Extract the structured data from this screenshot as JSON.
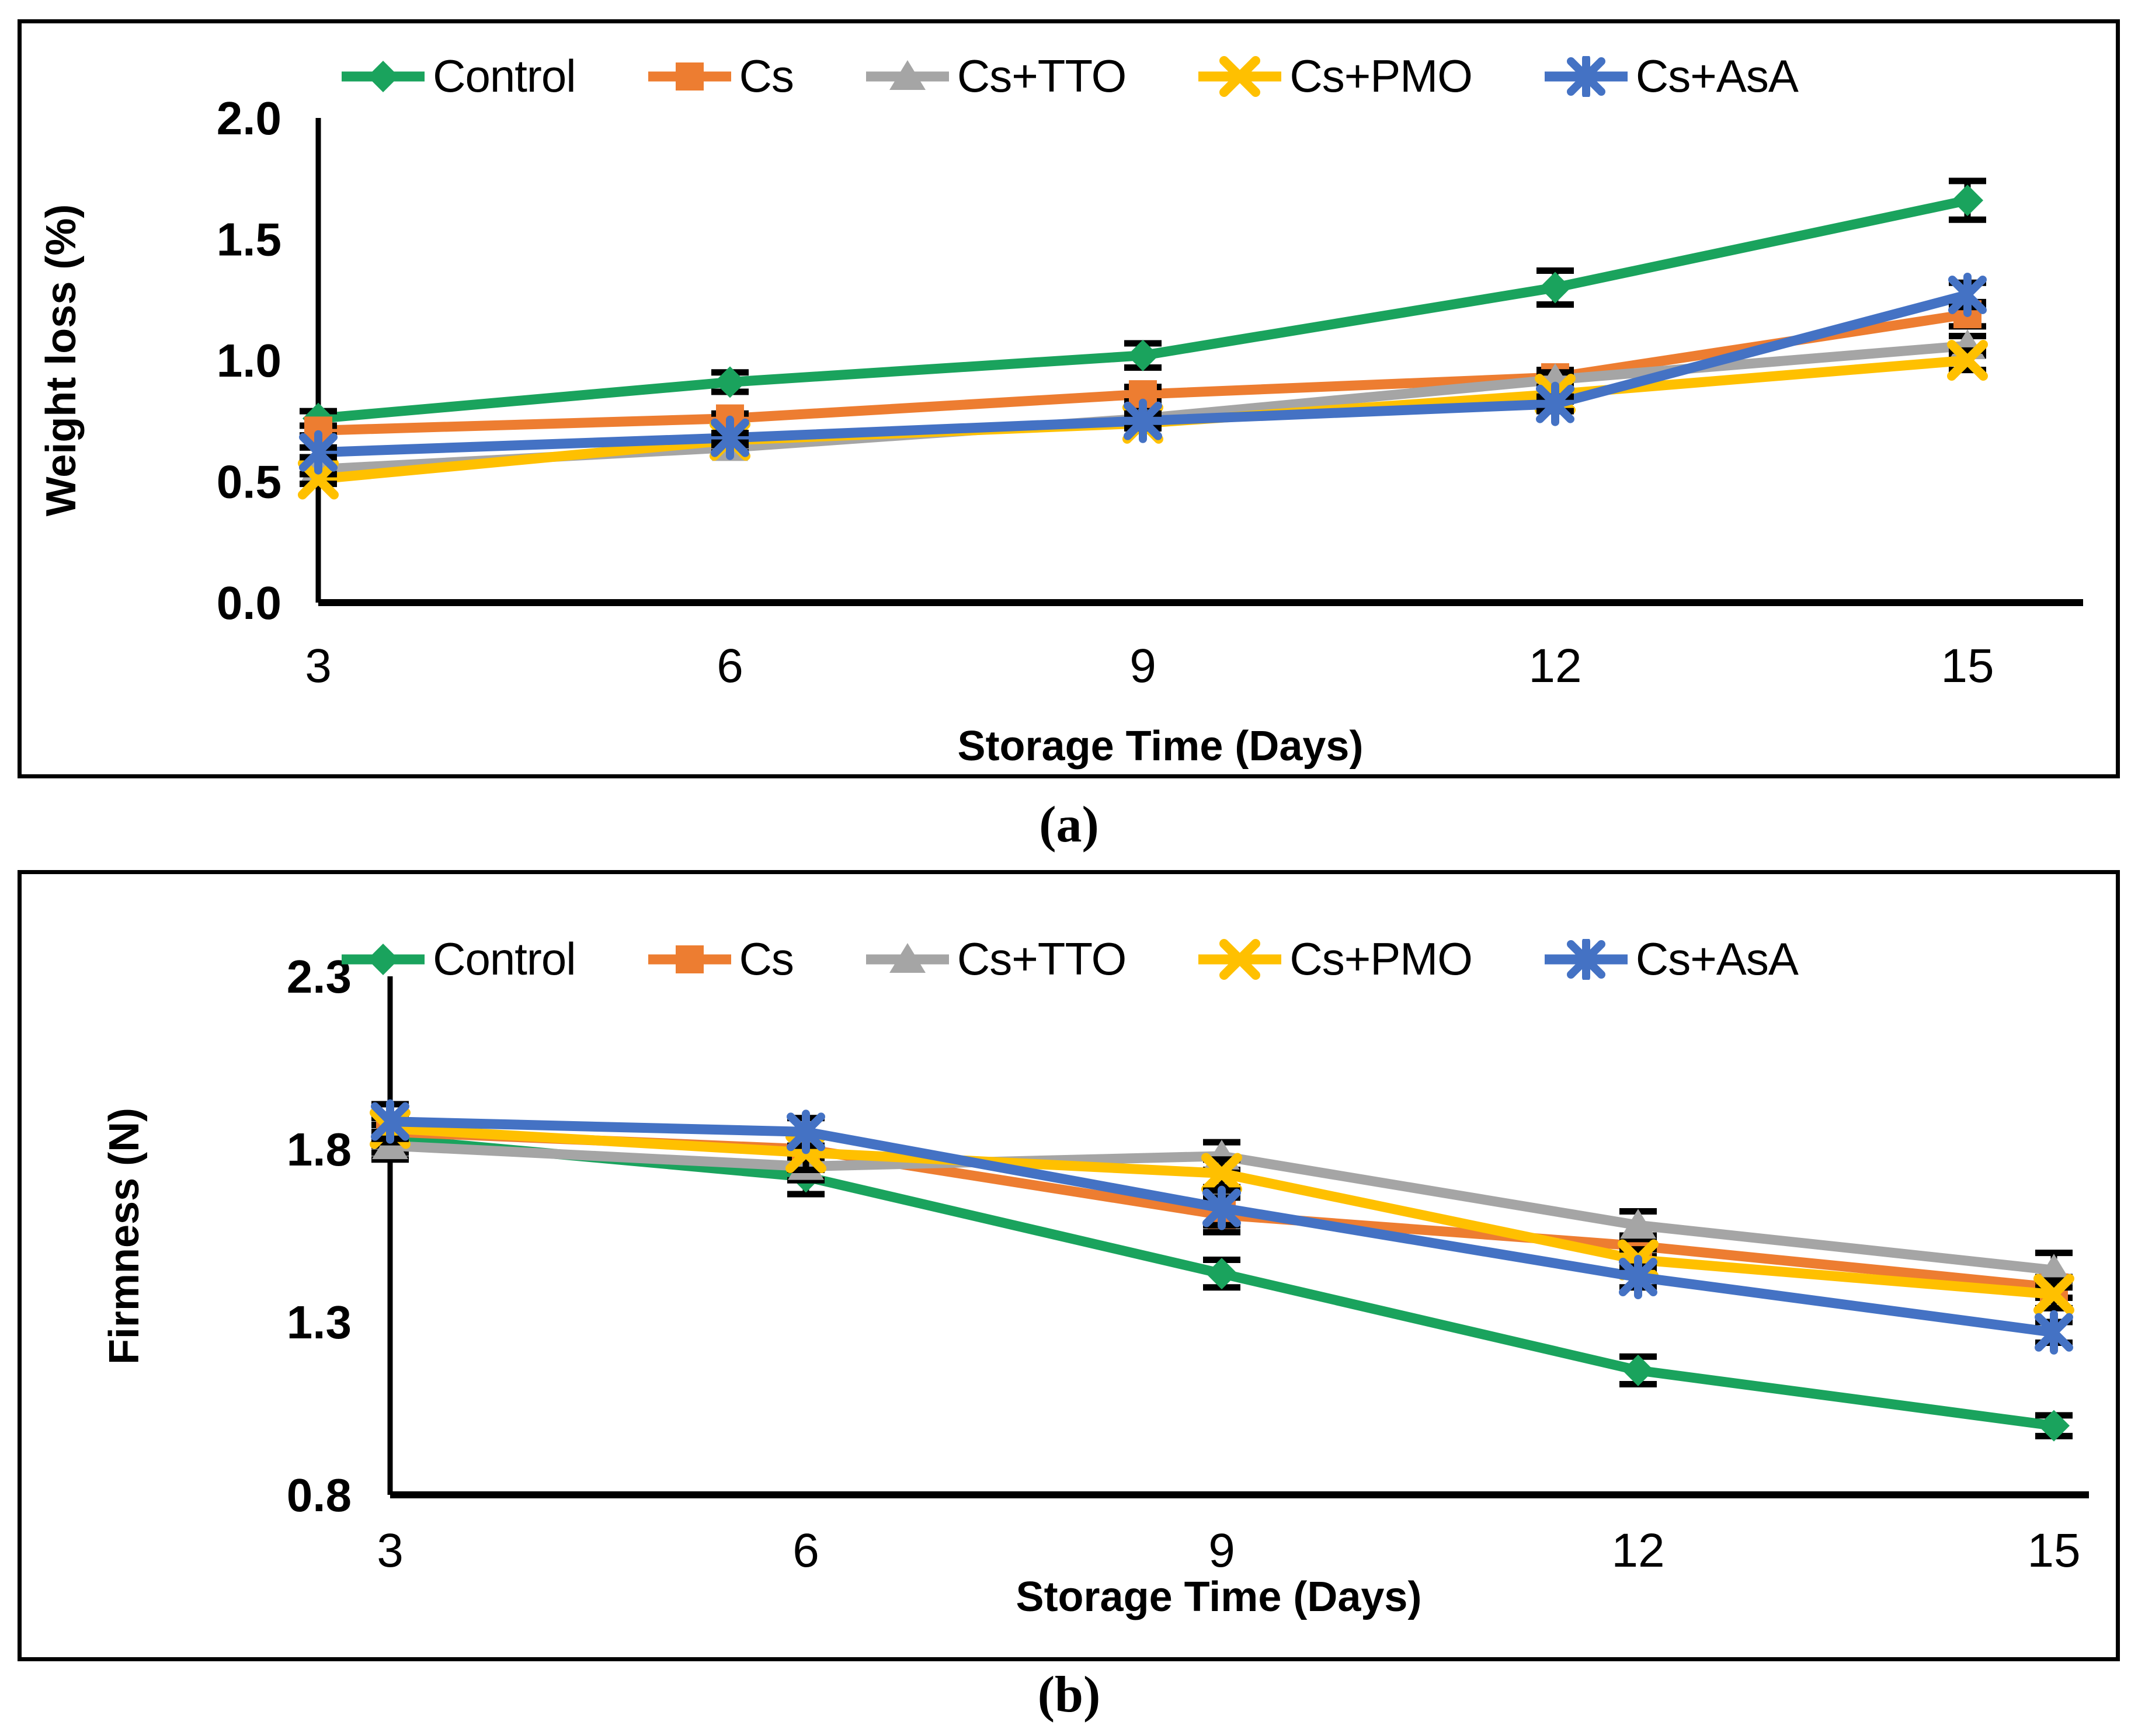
{
  "figure": {
    "panel_a_caption": "(a)",
    "panel_b_caption": "(b)"
  },
  "chart_data": [
    {
      "id": "a",
      "type": "line",
      "title": "",
      "xlabel": "Storage Time (Days)",
      "ylabel": "Weight loss (%)",
      "categories": [
        "3",
        "6",
        "9",
        "12",
        "15"
      ],
      "y_ticks": [
        "0.0",
        "0.5",
        "1.0",
        "1.5",
        "2.0"
      ],
      "ylim": [
        0.0,
        2.0
      ],
      "grid": "off",
      "legend_position": "top-center",
      "series": [
        {
          "name": "Control",
          "color": "#1AA35D",
          "marker": "diamond",
          "values": [
            0.76,
            0.91,
            1.02,
            1.3,
            1.66
          ],
          "errors": [
            0.03,
            0.04,
            0.05,
            0.07,
            0.08
          ]
        },
        {
          "name": "Cs",
          "color": "#ED7D31",
          "marker": "square",
          "values": [
            0.71,
            0.76,
            0.86,
            0.93,
            1.19
          ],
          "errors": [
            0.02,
            0.02,
            0.03,
            0.03,
            0.05
          ]
        },
        {
          "name": "Cs+TTO",
          "color": "#A5A5A5",
          "marker": "triangle",
          "values": [
            0.55,
            0.64,
            0.76,
            0.92,
            1.06
          ],
          "errors": [
            0.02,
            0.02,
            0.03,
            0.03,
            0.04
          ]
        },
        {
          "name": "Cs+PMO",
          "color": "#FFC000",
          "marker": "x",
          "values": [
            0.51,
            0.67,
            0.74,
            0.86,
            1.0
          ],
          "errors": [
            0.02,
            0.02,
            0.02,
            0.03,
            0.04
          ]
        },
        {
          "name": "Cs+AsA",
          "color": "#4472C4",
          "marker": "asterisk",
          "values": [
            0.62,
            0.68,
            0.75,
            0.82,
            1.27
          ],
          "errors": [
            0.02,
            0.02,
            0.03,
            0.03,
            0.05
          ]
        }
      ]
    },
    {
      "id": "b",
      "type": "line",
      "title": "",
      "xlabel": "Storage Time (Days)",
      "ylabel": "Firmness (N)",
      "categories": [
        "3",
        "6",
        "9",
        "12",
        "15"
      ],
      "y_ticks": [
        "0.8",
        "1.3",
        "1.8",
        "2.3"
      ],
      "ylim": [
        0.8,
        2.3
      ],
      "grid": "off",
      "legend_position": "top-center",
      "series": [
        {
          "name": "Control",
          "color": "#1AA35D",
          "marker": "diamond",
          "values": [
            1.83,
            1.72,
            1.44,
            1.16,
            1.0
          ],
          "errors": [
            0.04,
            0.05,
            0.04,
            0.04,
            0.03
          ]
        },
        {
          "name": "Cs",
          "color": "#ED7D31",
          "marker": "square",
          "values": [
            1.85,
            1.8,
            1.61,
            1.52,
            1.4
          ],
          "errors": [
            0.04,
            0.04,
            0.05,
            0.03,
            0.03
          ]
        },
        {
          "name": "Cs+TTO",
          "color": "#A5A5A5",
          "marker": "triangle",
          "values": [
            1.81,
            1.75,
            1.78,
            1.58,
            1.45
          ],
          "errors": [
            0.04,
            0.04,
            0.04,
            0.04,
            0.05
          ]
        },
        {
          "name": "Cs+PMO",
          "color": "#FFC000",
          "marker": "x",
          "values": [
            1.86,
            1.79,
            1.73,
            1.48,
            1.38
          ],
          "errors": [
            0.04,
            0.05,
            0.04,
            0.03,
            0.04
          ]
        },
        {
          "name": "Cs+AsA",
          "color": "#4472C4",
          "marker": "asterisk",
          "values": [
            1.88,
            1.85,
            1.63,
            1.43,
            1.27
          ],
          "errors": [
            0.05,
            0.04,
            0.05,
            0.03,
            0.03
          ]
        }
      ]
    }
  ]
}
